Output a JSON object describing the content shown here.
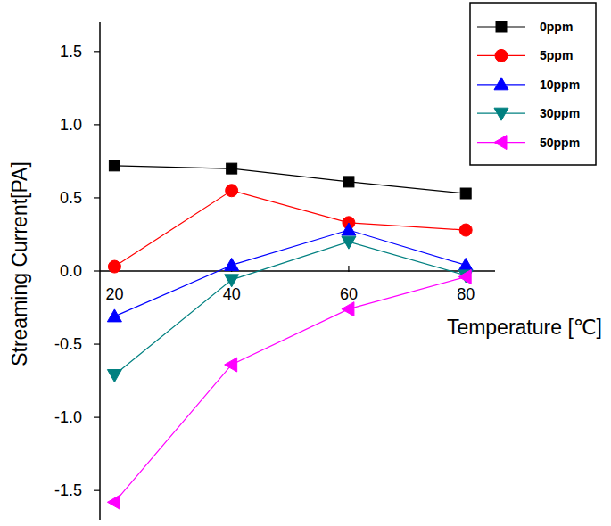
{
  "chart_data": {
    "type": "line",
    "x_label": "Temperature [℃]",
    "y_label": "Streaming Current[PA]",
    "x": [
      20,
      40,
      60,
      80
    ],
    "xlim": [
      17.5,
      85
    ],
    "xticks": [
      20,
      40,
      60,
      80
    ],
    "ylim": [
      -1.7,
      1.7
    ],
    "yticks": [
      -1.5,
      {
        "value": -1,
        "label": "-1.0"
      },
      -0.5,
      {
        "value": 0,
        "label": "0.0"
      },
      0.5,
      {
        "value": 1,
        "label": "1.0"
      },
      1.5
    ],
    "grid": false,
    "legend": "upper right",
    "series": [
      {
        "name": "0ppm",
        "color": "#000000",
        "marker": "square",
        "line_style": "solid",
        "values": [
          0.72,
          0.7,
          0.61,
          0.53
        ]
      },
      {
        "name": "5ppm",
        "color": "#ff0000",
        "marker": "circle",
        "line_style": "solid",
        "values": [
          0.03,
          0.55,
          0.33,
          0.28
        ]
      },
      {
        "name": "10ppm",
        "color": "#0000ff",
        "marker": "triangle-up",
        "line_style": "solid",
        "values": [
          -0.31,
          0.04,
          0.28,
          0.04
        ]
      },
      {
        "name": "30ppm",
        "color": "#008080",
        "marker": "triangle-down",
        "line_style": "solid",
        "values": [
          -0.71,
          -0.06,
          0.2,
          -0.03
        ]
      },
      {
        "name": "50ppm",
        "color": "#ff00ff",
        "marker": "triangle-left",
        "line_style": "solid",
        "values": [
          -1.58,
          -0.64,
          -0.26,
          -0.04
        ]
      }
    ]
  }
}
